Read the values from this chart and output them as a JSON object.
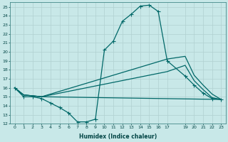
{
  "xlabel": "Humidex (Indice chaleur)",
  "bg_color": "#c8e8e8",
  "grid_color": "#b0d0d0",
  "line_color": "#006868",
  "xlim": [
    -0.5,
    23.5
  ],
  "ylim": [
    12,
    25.5
  ],
  "yticks": [
    12,
    13,
    14,
    15,
    16,
    17,
    18,
    19,
    20,
    21,
    22,
    23,
    24,
    25
  ],
  "xtick_vals": [
    0,
    1,
    2,
    3,
    4,
    5,
    6,
    7,
    8,
    9,
    10,
    11,
    12,
    13,
    14,
    15,
    16,
    17,
    19,
    20,
    21,
    22,
    23
  ],
  "xtick_labels": [
    "0",
    "1",
    "2",
    "3",
    "4",
    "5",
    "6",
    "7",
    "8",
    "9",
    "10",
    "11",
    "12",
    "13",
    "14",
    "15",
    "16",
    "17",
    "19",
    "20",
    "21",
    "22",
    "23"
  ],
  "line1_x": [
    0,
    1,
    2,
    3,
    4,
    5,
    6,
    7,
    8,
    9,
    10,
    11,
    12,
    13,
    14,
    15,
    16,
    17,
    19,
    20,
    21,
    22,
    23
  ],
  "line1_y": [
    16.0,
    15.0,
    15.0,
    14.8,
    14.3,
    13.8,
    13.2,
    12.2,
    12.2,
    12.5,
    20.2,
    21.2,
    23.4,
    24.2,
    25.1,
    25.2,
    24.5,
    19.0,
    17.3,
    16.3,
    15.4,
    14.8,
    14.7
  ],
  "line2_x": [
    0,
    1,
    2,
    3,
    17,
    19,
    20,
    21,
    22,
    23
  ],
  "line2_y": [
    16.0,
    15.2,
    15.1,
    15.0,
    19.2,
    19.5,
    17.4,
    16.3,
    15.3,
    14.7
  ],
  "line3_x": [
    0,
    1,
    2,
    3,
    17,
    19,
    20,
    21,
    22,
    23
  ],
  "line3_y": [
    16.0,
    15.2,
    15.1,
    15.0,
    17.8,
    18.5,
    16.8,
    15.8,
    14.9,
    14.7
  ],
  "line4_x": [
    0,
    1,
    2,
    3,
    23
  ],
  "line4_y": [
    16.0,
    15.2,
    15.1,
    15.0,
    14.7
  ]
}
